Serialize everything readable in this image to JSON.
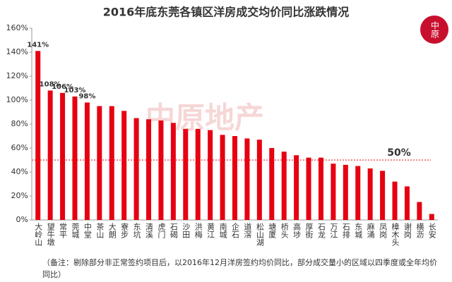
{
  "chart_data": {
    "type": "bar",
    "title": "2016年底东莞各镇区洋房成交均价同比涨跌情况",
    "logo": "中原",
    "watermark": "中原地产",
    "categories": [
      "大岭山",
      "望牛墩",
      "常平",
      "莞城",
      "中堂",
      "茶山",
      "大朗",
      "寮步",
      "东坑",
      "清溪",
      "虎门",
      "石碣",
      "沙田",
      "洪梅",
      "黄江",
      "南城",
      "企石",
      "道滘",
      "松山湖",
      "塘厦",
      "桥头",
      "高埗",
      "厚街",
      "石龙",
      "万江",
      "石排",
      "东城",
      "麻涌",
      "凤岗",
      "樟木头",
      "谢岗",
      "横沥",
      "长安"
    ],
    "values": [
      141,
      108,
      106,
      103,
      98,
      95,
      95,
      91,
      85,
      84,
      83,
      81,
      76,
      76,
      75,
      71,
      70,
      68,
      67,
      60,
      57,
      54,
      52,
      52,
      47,
      46,
      45,
      43,
      41,
      32,
      28,
      15,
      5
    ],
    "value_labels": [
      "141%",
      "108%",
      "106%",
      "103%",
      "98%",
      null,
      null,
      null,
      null,
      null,
      null,
      null,
      null,
      null,
      null,
      null,
      null,
      null,
      null,
      null,
      null,
      null,
      null,
      null,
      null,
      null,
      null,
      null,
      null,
      null,
      null,
      null,
      null
    ],
    "color": "#e60012",
    "ylim": [
      0,
      160
    ],
    "yticks": [
      {
        "value": 0,
        "label": "0%"
      },
      {
        "value": 20,
        "label": "20%"
      },
      {
        "value": 40,
        "label": "40%"
      },
      {
        "value": 60,
        "label": "60%"
      },
      {
        "value": 80,
        "label": "80%"
      },
      {
        "value": 100,
        "label": "100%"
      },
      {
        "value": 120,
        "label": "120%"
      },
      {
        "value": 140,
        "label": "140%"
      },
      {
        "value": 160,
        "label": "160%"
      }
    ],
    "reference_line": {
      "value": 50,
      "label": "50%"
    },
    "note": "（备注：剔除部分非正常签约项目后，以2016年12月洋房签约均价同比，部分成交量小的区域以四季度或全年均价同比）",
    "grid": false
  }
}
